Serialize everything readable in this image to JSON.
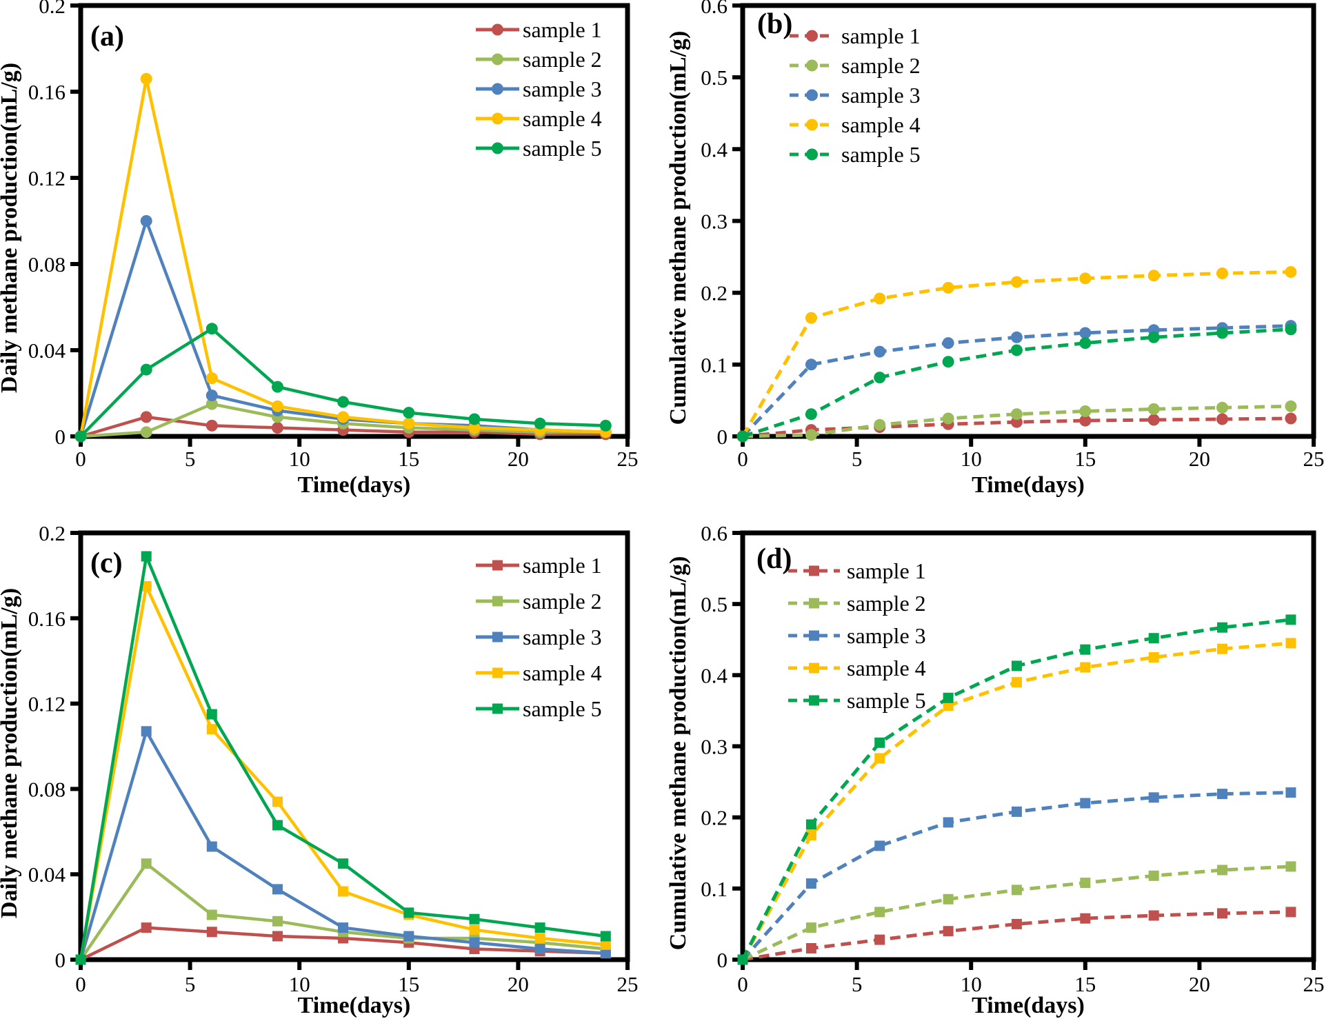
{
  "samples": [
    "sample 1",
    "sample 2",
    "sample 3",
    "sample 4",
    "sample 5"
  ],
  "colors": [
    "#c0504d",
    "#9bbb59",
    "#4f81bd",
    "#ffc000",
    "#00a650"
  ],
  "axis_color": "#000000",
  "chart_data": [
    {
      "id": "a",
      "tag": "(a)",
      "type": "line",
      "marker": "circle",
      "line_style": "solid",
      "xlabel": "Time(days)",
      "ylabel": "Daily methane production(mL/g)",
      "x": [
        0,
        3,
        6,
        9,
        12,
        15,
        18,
        21,
        24
      ],
      "xticks": [
        "0",
        "5",
        "10",
        "15",
        "20",
        "25"
      ],
      "xlim": [
        0,
        25
      ],
      "ylim": [
        0,
        0.2
      ],
      "yticks": [
        "0",
        "0.04",
        "0.08",
        "0.12",
        "0.16",
        "0.2"
      ],
      "grid": false,
      "legend_position": "upper right",
      "series": [
        {
          "name": "sample 1",
          "values": [
            0,
            0.009,
            0.005,
            0.004,
            0.003,
            0.002,
            0.002,
            0.001,
            0.001
          ]
        },
        {
          "name": "sample 2",
          "values": [
            0,
            0.002,
            0.015,
            0.009,
            0.006,
            0.004,
            0.003,
            0.002,
            0.002
          ]
        },
        {
          "name": "sample 3",
          "values": [
            0,
            0.1,
            0.019,
            0.012,
            0.008,
            0.006,
            0.005,
            0.003,
            0.002
          ]
        },
        {
          "name": "sample 4",
          "values": [
            0,
            0.166,
            0.027,
            0.014,
            0.009,
            0.006,
            0.004,
            0.003,
            0.002
          ]
        },
        {
          "name": "sample 5",
          "values": [
            0,
            0.031,
            0.05,
            0.023,
            0.016,
            0.011,
            0.008,
            0.006,
            0.005
          ]
        }
      ]
    },
    {
      "id": "b",
      "tag": "(b)",
      "type": "line",
      "marker": "circle",
      "line_style": "dashed",
      "xlabel": "Time(days)",
      "ylabel": "Cumulative methane production(mL/g)",
      "x": [
        0,
        3,
        6,
        9,
        12,
        15,
        18,
        21,
        24
      ],
      "xticks": [
        "0",
        "5",
        "10",
        "15",
        "20",
        "25"
      ],
      "xlim": [
        0,
        25
      ],
      "ylim": [
        0,
        0.6
      ],
      "yticks": [
        "0",
        "0.1",
        "0.2",
        "0.3",
        "0.4",
        "0.5",
        "0.6"
      ],
      "grid": false,
      "legend_position": "upper left",
      "series": [
        {
          "name": "sample 1",
          "values": [
            0,
            0.009,
            0.013,
            0.017,
            0.02,
            0.022,
            0.023,
            0.024,
            0.025
          ]
        },
        {
          "name": "sample 2",
          "values": [
            0,
            0.002,
            0.016,
            0.025,
            0.031,
            0.035,
            0.038,
            0.04,
            0.042
          ]
        },
        {
          "name": "sample 3",
          "values": [
            0,
            0.1,
            0.118,
            0.13,
            0.138,
            0.144,
            0.148,
            0.151,
            0.154
          ]
        },
        {
          "name": "sample 4",
          "values": [
            0,
            0.165,
            0.192,
            0.207,
            0.215,
            0.22,
            0.224,
            0.227,
            0.229
          ]
        },
        {
          "name": "sample 5",
          "values": [
            0,
            0.031,
            0.082,
            0.104,
            0.12,
            0.13,
            0.138,
            0.144,
            0.149
          ]
        }
      ]
    },
    {
      "id": "c",
      "tag": "(c)",
      "type": "line",
      "marker": "square",
      "line_style": "solid",
      "xlabel": "Time(days)",
      "ylabel": "Daily methane production(mL/g)",
      "x": [
        0,
        3,
        6,
        9,
        12,
        15,
        18,
        21,
        24
      ],
      "xticks": [
        "0",
        "5",
        "10",
        "15",
        "20",
        "25"
      ],
      "xlim": [
        0,
        25
      ],
      "ylim": [
        0,
        0.2
      ],
      "yticks": [
        "0",
        "0.04",
        "0.08",
        "0.12",
        "0.16",
        "0.2"
      ],
      "grid": false,
      "legend_position": "upper right",
      "series": [
        {
          "name": "sample 1",
          "values": [
            0,
            0.015,
            0.013,
            0.011,
            0.01,
            0.008,
            0.005,
            0.004,
            0.003
          ]
        },
        {
          "name": "sample 2",
          "values": [
            0,
            0.045,
            0.021,
            0.018,
            0.013,
            0.01,
            0.01,
            0.008,
            0.005
          ]
        },
        {
          "name": "sample 3",
          "values": [
            0,
            0.107,
            0.053,
            0.033,
            0.015,
            0.011,
            0.008,
            0.005,
            0.003
          ]
        },
        {
          "name": "sample 4",
          "values": [
            0,
            0.175,
            0.108,
            0.074,
            0.032,
            0.021,
            0.014,
            0.01,
            0.007
          ]
        },
        {
          "name": "sample 5",
          "values": [
            0,
            0.189,
            0.115,
            0.063,
            0.045,
            0.022,
            0.019,
            0.015,
            0.011
          ]
        }
      ]
    },
    {
      "id": "d",
      "tag": "(d)",
      "type": "line",
      "marker": "square",
      "line_style": "dashed",
      "xlabel": "Time(days)",
      "ylabel": "Cumulative methane production(mL/g)",
      "x": [
        0,
        3,
        6,
        9,
        12,
        15,
        18,
        21,
        24
      ],
      "xticks": [
        "0",
        "5",
        "10",
        "15",
        "20",
        "25"
      ],
      "xlim": [
        0,
        25
      ],
      "ylim": [
        0,
        0.6
      ],
      "yticks": [
        "0",
        "0.1",
        "0.2",
        "0.3",
        "0.4",
        "0.5",
        "0.6"
      ],
      "grid": false,
      "legend_position": "upper left",
      "series": [
        {
          "name": "sample 1",
          "values": [
            0,
            0.016,
            0.028,
            0.04,
            0.05,
            0.058,
            0.062,
            0.065,
            0.067
          ]
        },
        {
          "name": "sample 2",
          "values": [
            0,
            0.045,
            0.067,
            0.085,
            0.098,
            0.108,
            0.118,
            0.126,
            0.131
          ]
        },
        {
          "name": "sample 3",
          "values": [
            0,
            0.107,
            0.16,
            0.193,
            0.208,
            0.22,
            0.228,
            0.233,
            0.235
          ]
        },
        {
          "name": "sample 4",
          "values": [
            0,
            0.175,
            0.283,
            0.357,
            0.39,
            0.411,
            0.425,
            0.437,
            0.445
          ]
        },
        {
          "name": "sample 5",
          "values": [
            0,
            0.19,
            0.305,
            0.368,
            0.413,
            0.436,
            0.452,
            0.467,
            0.478
          ]
        }
      ]
    }
  ]
}
